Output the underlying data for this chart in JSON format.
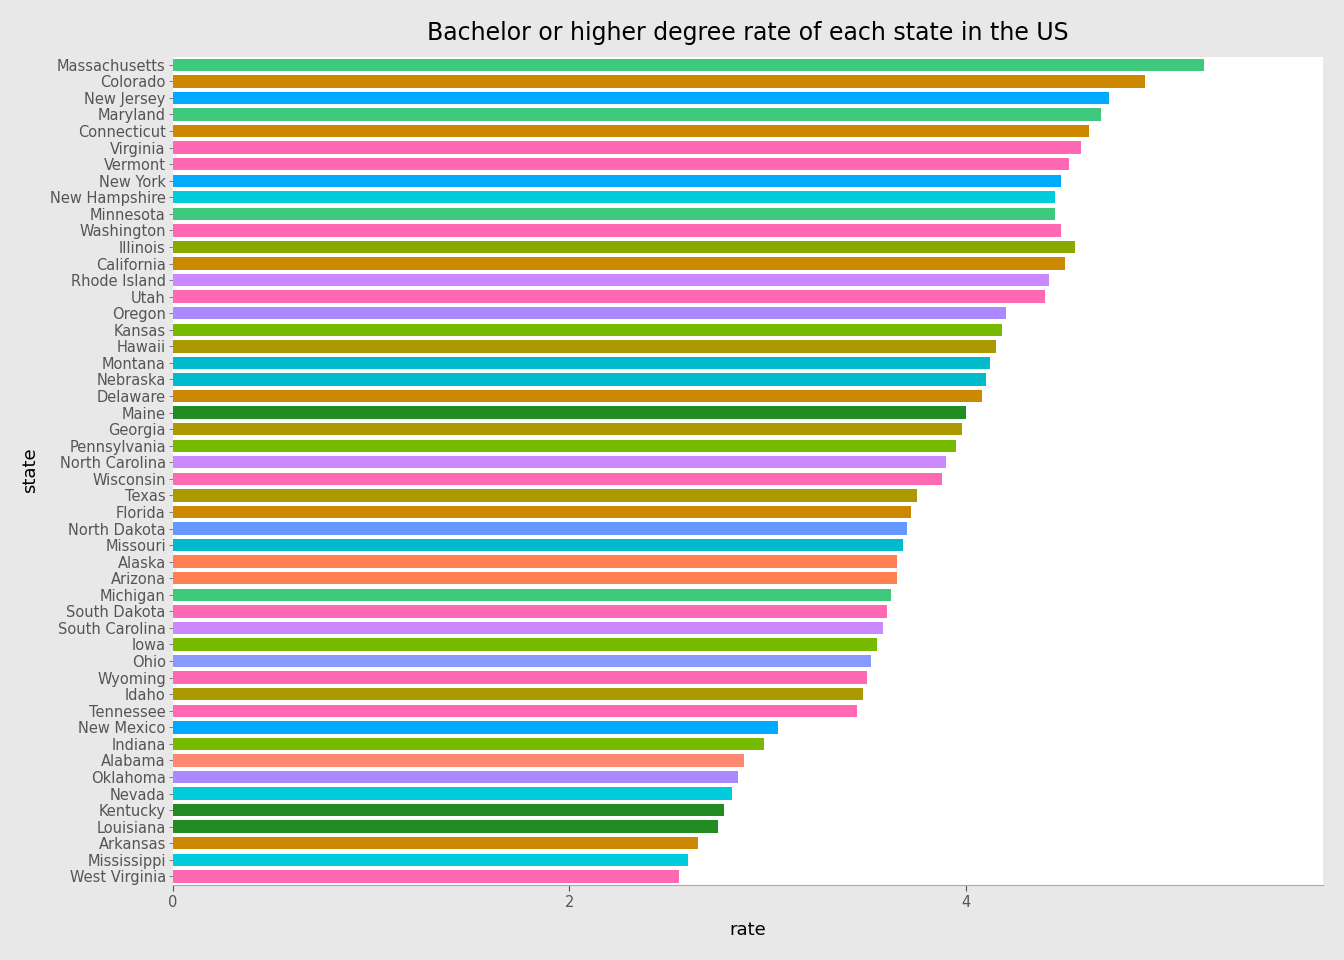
{
  "title": "Bachelor or higher degree rate of each state in the US",
  "xlabel": "rate",
  "ylabel": "state",
  "states": [
    "Massachusetts",
    "Colorado",
    "New Jersey",
    "Maryland",
    "Connecticut",
    "Virginia",
    "Vermont",
    "New York",
    "New Hampshire",
    "Minnesota",
    "Washington",
    "Illinois",
    "California",
    "Rhode Island",
    "Utah",
    "Oregon",
    "Kansas",
    "Hawaii",
    "Montana",
    "Nebraska",
    "Delaware",
    "Maine",
    "Georgia",
    "Pennsylvania",
    "North Carolina",
    "Wisconsin",
    "Texas",
    "Florida",
    "North Dakota",
    "Missouri",
    "Alaska",
    "Arizona",
    "Michigan",
    "South Dakota",
    "South Carolina",
    "Iowa",
    "Ohio",
    "Wyoming",
    "Idaho",
    "Tennessee",
    "New Mexico",
    "Indiana",
    "Alabama",
    "Oklahoma",
    "Nevada",
    "Kentucky",
    "Louisiana",
    "Arkansas",
    "Mississippi",
    "West Virginia"
  ],
  "values": [
    5.2,
    4.9,
    4.72,
    4.68,
    4.62,
    4.58,
    4.52,
    4.48,
    4.45,
    4.45,
    4.48,
    4.55,
    4.5,
    4.42,
    4.4,
    4.2,
    4.18,
    4.15,
    4.12,
    4.1,
    4.08,
    4.0,
    3.98,
    3.95,
    3.9,
    3.88,
    3.75,
    3.72,
    3.7,
    3.68,
    3.65,
    3.65,
    3.62,
    3.6,
    3.58,
    3.55,
    3.52,
    3.5,
    3.48,
    3.45,
    3.05,
    2.98,
    2.88,
    2.85,
    2.82,
    2.78,
    2.75,
    2.65,
    2.6,
    2.55
  ],
  "colors": [
    "#3EC97C",
    "#CC8800",
    "#00AAFF",
    "#3EC97C",
    "#CC8800",
    "#FF69B4",
    "#FF69B4",
    "#00AAFF",
    "#00CCDD",
    "#3EC97C",
    "#FF69B4",
    "#88AA00",
    "#CC8800",
    "#CC88FF",
    "#FF69B4",
    "#AA88FF",
    "#77BB00",
    "#AA9900",
    "#00BBCC",
    "#00BBCC",
    "#CC8800",
    "#228B22",
    "#AA9900",
    "#77BB00",
    "#CC88FF",
    "#FF69B4",
    "#AA9900",
    "#CC8800",
    "#6699FF",
    "#00BBCC",
    "#FF7F50",
    "#FF7F50",
    "#3EC97C",
    "#FF69B4",
    "#CC88FF",
    "#77BB00",
    "#8899FF",
    "#FF69B4",
    "#AA9900",
    "#FF69B4",
    "#00AAFF",
    "#77BB00",
    "#FF8870",
    "#AA88FF",
    "#00CCDD",
    "#228B22",
    "#228B22",
    "#CC8800",
    "#00CCDD",
    "#FF69B4"
  ],
  "xlim": [
    0,
    5.8
  ],
  "xticks": [
    0,
    2,
    4
  ],
  "outer_bg": "#E8E8E8",
  "plot_bg": "#FFFFFF",
  "title_fontsize": 17,
  "axis_label_fontsize": 13,
  "tick_fontsize": 10.5
}
